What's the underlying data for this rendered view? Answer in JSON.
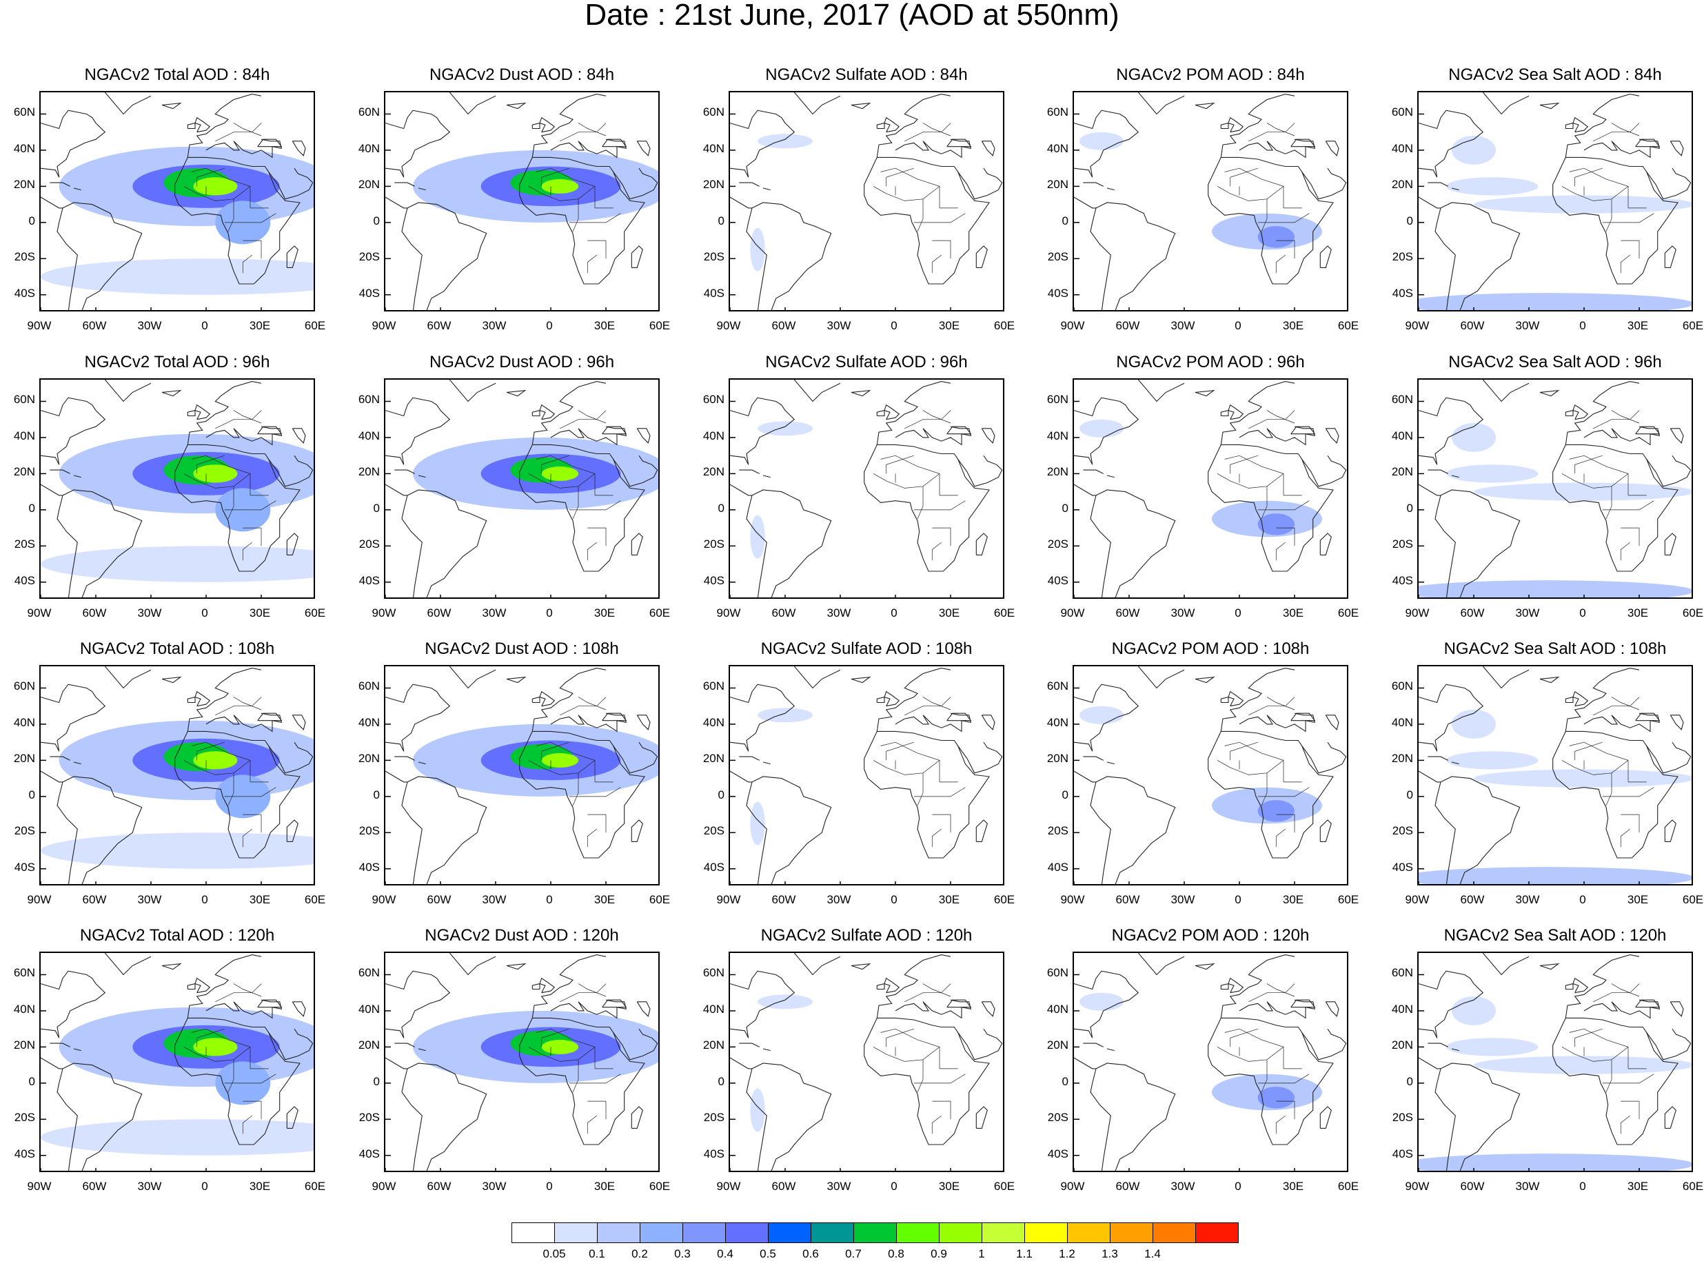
{
  "title": "Date : 21st June, 2017 (AOD at 550nm)",
  "lat_ticks": [
    "60N",
    "40N",
    "20N",
    "0",
    "20S",
    "40S"
  ],
  "lat_values": [
    60,
    40,
    20,
    0,
    -20,
    -40
  ],
  "lon_ticks": [
    "90W",
    "60W",
    "30W",
    "0",
    "30E",
    "60E"
  ],
  "lon_values": [
    -90,
    -60,
    -30,
    0,
    30,
    60
  ],
  "map_extent": {
    "lon": [
      -90,
      60
    ],
    "lat": [
      -50,
      72
    ]
  },
  "panels": [
    [
      "NGACv2 Total AOD : 84h",
      "NGACv2 Dust AOD : 84h",
      "NGACv2 Sulfate AOD : 84h",
      "NGACv2 POM AOD : 84h",
      "NGACv2 Sea Salt AOD : 84h"
    ],
    [
      "NGACv2 Total AOD : 96h",
      "NGACv2 Dust AOD : 96h",
      "NGACv2 Sulfate AOD : 96h",
      "NGACv2 POM AOD : 96h",
      "NGACv2 Sea Salt AOD : 96h"
    ],
    [
      "NGACv2 Total AOD : 108h",
      "NGACv2 Dust AOD : 108h",
      "NGACv2 Sulfate AOD : 108h",
      "NGACv2 POM AOD : 108h",
      "NGACv2 Sea Salt AOD : 108h"
    ],
    [
      "NGACv2 Total AOD : 120h",
      "NGACv2 Dust AOD : 120h",
      "NGACv2 Sulfate AOD : 120h",
      "NGACv2 POM AOD : 120h",
      "NGACv2 Sea Salt  AOD : 120h"
    ]
  ],
  "colorbar": {
    "labels": [
      "0.05",
      "0.1",
      "0.2",
      "0.3",
      "0.4",
      "0.5",
      "0.6",
      "0.7",
      "0.8",
      "0.9",
      "1",
      "1.1",
      "1.2",
      "1.3",
      "1.4"
    ],
    "colors": [
      "#ffffff",
      "#d6e2ff",
      "#b5c9ff",
      "#8eb2ff",
      "#7f96ff",
      "#6370ff",
      "#0063ff",
      "#009696",
      "#00c633",
      "#63ff00",
      "#96ff00",
      "#c6ff33",
      "#ffff00",
      "#ffc600",
      "#ffa000",
      "#ff7c00",
      "#ff1900"
    ]
  },
  "plumes": {
    "total": [
      {
        "lon": -5,
        "lat": 20,
        "rx": 75,
        "ry": 22,
        "level": 2
      },
      {
        "lon": 0,
        "lat": 20,
        "rx": 40,
        "ry": 12,
        "level": 5
      },
      {
        "lon": -5,
        "lat": 22,
        "rx": 18,
        "ry": 8,
        "level": 8
      },
      {
        "lon": 5,
        "lat": 20,
        "rx": 12,
        "ry": 5,
        "level": 10
      },
      {
        "lon": 0,
        "lat": -30,
        "rx": 90,
        "ry": 10,
        "level": 1
      },
      {
        "lon": 20,
        "lat": 0,
        "rx": 15,
        "ry": 12,
        "level": 3
      }
    ],
    "dust": [
      {
        "lon": -5,
        "lat": 20,
        "rx": 70,
        "ry": 20,
        "level": 2
      },
      {
        "lon": 0,
        "lat": 20,
        "rx": 38,
        "ry": 11,
        "level": 5
      },
      {
        "lon": -5,
        "lat": 22,
        "rx": 17,
        "ry": 7,
        "level": 8
      },
      {
        "lon": 5,
        "lat": 20,
        "rx": 10,
        "ry": 4,
        "level": 10
      }
    ],
    "sulfate": [
      {
        "lon": -60,
        "lat": 45,
        "rx": 15,
        "ry": 4,
        "level": 1
      },
      {
        "lon": -75,
        "lat": -15,
        "rx": 4,
        "ry": 12,
        "level": 1
      }
    ],
    "pom": [
      {
        "lon": 15,
        "lat": -5,
        "rx": 30,
        "ry": 10,
        "level": 2
      },
      {
        "lon": 20,
        "lat": -8,
        "rx": 10,
        "ry": 6,
        "level": 4
      },
      {
        "lon": -75,
        "lat": 45,
        "rx": 12,
        "ry": 5,
        "level": 1
      }
    ],
    "seasalt": [
      {
        "lon": -20,
        "lat": -45,
        "rx": 80,
        "ry": 6,
        "level": 2
      },
      {
        "lon": -50,
        "lat": 20,
        "rx": 25,
        "ry": 5,
        "level": 1
      },
      {
        "lon": -60,
        "lat": 40,
        "rx": 12,
        "ry": 8,
        "level": 1
      },
      {
        "lon": 0,
        "lat": 10,
        "rx": 60,
        "ry": 5,
        "level": 1
      }
    ]
  }
}
